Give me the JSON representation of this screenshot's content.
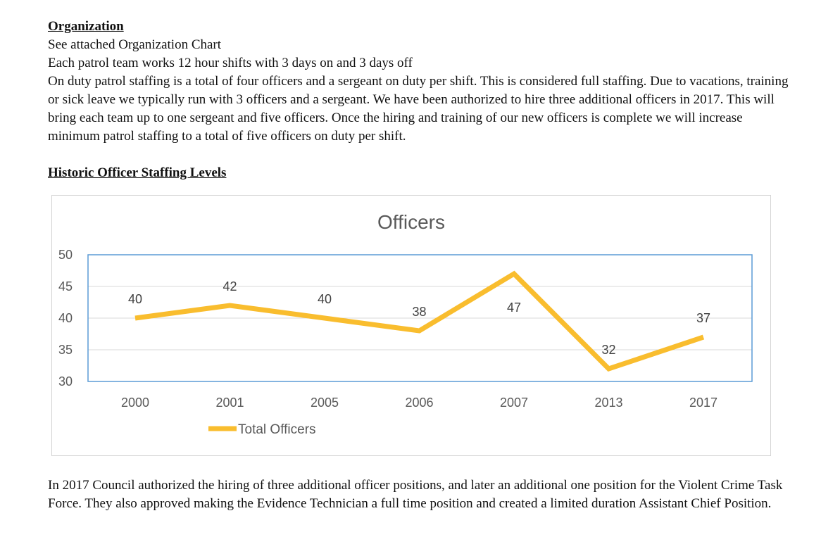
{
  "organization": {
    "heading": "Organization",
    "lines": [
      "See attached Organization Chart",
      "Each patrol team works 12 hour shifts with 3 days on and 3 days off",
      "On duty patrol staffing is a total of four officers and a sergeant on duty per shift. This is considered full staffing. Due to vacations, training or sick leave we typically run with 3 officers and a sergeant.  We have been authorized to hire three additional officers in 2017.  This will bring each team up to one sergeant and five officers.  Once the hiring and training of our new officers is complete we will increase minimum patrol staffing to a total of five officers on duty per shift."
    ]
  },
  "staffing": {
    "heading": "Historic Officer Staffing Levels"
  },
  "closing": {
    "text": "In 2017 Council authorized the hiring of three additional officer positions, and later an additional one position for the Violent Crime Task Force. They also approved making the Evidence Technician a full time position and created a limited duration Assistant Chief Position."
  },
  "chart_data": {
    "type": "line",
    "title": "Officers",
    "categories": [
      "2000",
      "2001",
      "2005",
      "2006",
      "2007",
      "2013",
      "2017"
    ],
    "series": [
      {
        "name": "Total Officers",
        "values": [
          40,
          42,
          40,
          38,
          47,
          32,
          37
        ],
        "color": "#f9bd2e"
      }
    ],
    "ylim": [
      30,
      50
    ],
    "yticks": [
      30,
      35,
      40,
      45,
      50
    ],
    "grid": true,
    "legend": "bottom",
    "data_labels": true,
    "plot_border_color": "#5b9bd5"
  }
}
